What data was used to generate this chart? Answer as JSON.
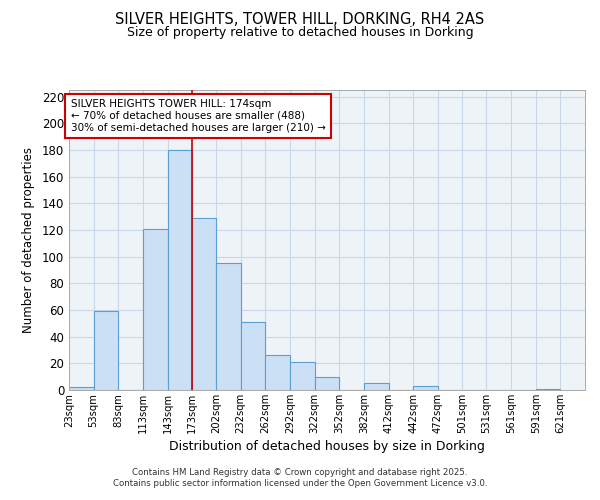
{
  "title": "SILVER HEIGHTS, TOWER HILL, DORKING, RH4 2AS",
  "subtitle": "Size of property relative to detached houses in Dorking",
  "xlabel": "Distribution of detached houses by size in Dorking",
  "ylabel": "Number of detached properties",
  "bar_left_edges": [
    23,
    53,
    83,
    113,
    143,
    173,
    202,
    232,
    262,
    292,
    322,
    352,
    382,
    412,
    442,
    472,
    501,
    531,
    561,
    591
  ],
  "bar_widths": [
    30,
    30,
    30,
    30,
    30,
    29,
    30,
    30,
    30,
    30,
    30,
    30,
    30,
    30,
    30,
    29,
    30,
    30,
    30,
    30
  ],
  "bar_heights": [
    2,
    59,
    0,
    121,
    180,
    129,
    95,
    51,
    26,
    21,
    10,
    0,
    5,
    0,
    3,
    0,
    0,
    0,
    0,
    1
  ],
  "bar_facecolor": "#cce0f5",
  "bar_edgecolor": "#5a9fd4",
  "vline_x": 173,
  "vline_color": "#cc0000",
  "annotation_text_line1": "SILVER HEIGHTS TOWER HILL: 174sqm",
  "annotation_text_line2": "← 70% of detached houses are smaller (488)",
  "annotation_text_line3": "30% of semi-detached houses are larger (210) →",
  "annotation_box_color": "#cc0000",
  "ylim": [
    0,
    225
  ],
  "yticks": [
    0,
    20,
    40,
    60,
    80,
    100,
    120,
    140,
    160,
    180,
    200,
    220
  ],
  "xtick_labels": [
    "23sqm",
    "53sqm",
    "83sqm",
    "113sqm",
    "143sqm",
    "173sqm",
    "202sqm",
    "232sqm",
    "262sqm",
    "292sqm",
    "322sqm",
    "352sqm",
    "382sqm",
    "412sqm",
    "442sqm",
    "472sqm",
    "501sqm",
    "531sqm",
    "561sqm",
    "591sqm",
    "621sqm"
  ],
  "grid_color": "#c8d8e8",
  "bg_color": "#eef3f8",
  "footer_line1": "Contains HM Land Registry data © Crown copyright and database right 2025.",
  "footer_line2": "Contains public sector information licensed under the Open Government Licence v3.0."
}
